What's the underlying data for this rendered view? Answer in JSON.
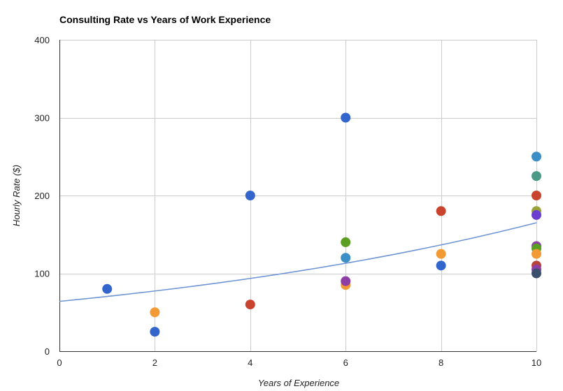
{
  "chart_data": {
    "type": "scatter",
    "title": "Consulting Rate vs Years of Work Experience",
    "xlabel": "Years of Experience",
    "ylabel": "Hourly Rate ($)",
    "xlim": [
      0,
      10
    ],
    "ylim": [
      0,
      400
    ],
    "x_ticks": [
      0,
      2,
      4,
      6,
      8,
      10
    ],
    "y_ticks": [
      0,
      100,
      200,
      300,
      400
    ],
    "x_tick_labels": [
      "0",
      "2",
      "4",
      "6",
      "8",
      "10"
    ],
    "y_tick_labels": [
      "0",
      "100",
      "200",
      "300",
      "400"
    ],
    "grid": true,
    "legend": "none",
    "trendline": {
      "type": "exponential",
      "start_value": 64,
      "end_value": 165,
      "color": "#6f94d4"
    },
    "points": [
      {
        "x": 1,
        "y": 80,
        "color": "#3366cc"
      },
      {
        "x": 2,
        "y": 50,
        "color": "#f29a35"
      },
      {
        "x": 2,
        "y": 25,
        "color": "#3366cc"
      },
      {
        "x": 4,
        "y": 200,
        "color": "#3366cc"
      },
      {
        "x": 4,
        "y": 60,
        "color": "#c8442f"
      },
      {
        "x": 6,
        "y": 300,
        "color": "#3366cc"
      },
      {
        "x": 6,
        "y": 140,
        "color": "#5a9e22"
      },
      {
        "x": 6,
        "y": 120,
        "color": "#3b8fc6"
      },
      {
        "x": 6,
        "y": 85,
        "color": "#f29a35"
      },
      {
        "x": 6,
        "y": 90,
        "color": "#8e3fa6"
      },
      {
        "x": 8,
        "y": 180,
        "color": "#c8442f"
      },
      {
        "x": 8,
        "y": 125,
        "color": "#f29a35"
      },
      {
        "x": 8,
        "y": 110,
        "color": "#3366cc"
      },
      {
        "x": 10,
        "y": 250,
        "color": "#3b8fc6"
      },
      {
        "x": 10,
        "y": 225,
        "color": "#4a9a86"
      },
      {
        "x": 10,
        "y": 200,
        "color": "#c8442f"
      },
      {
        "x": 10,
        "y": 180,
        "color": "#9aa33a"
      },
      {
        "x": 10,
        "y": 175,
        "color": "#6a3fcf"
      },
      {
        "x": 10,
        "y": 135,
        "color": "#8e3fa6"
      },
      {
        "x": 10,
        "y": 132,
        "color": "#5a9e22"
      },
      {
        "x": 10,
        "y": 125,
        "color": "#f29a35"
      },
      {
        "x": 10,
        "y": 110,
        "color": "#b5453a"
      },
      {
        "x": 10,
        "y": 105,
        "color": "#8e3fa6"
      },
      {
        "x": 10,
        "y": 100,
        "color": "#3a4f6b"
      }
    ]
  }
}
